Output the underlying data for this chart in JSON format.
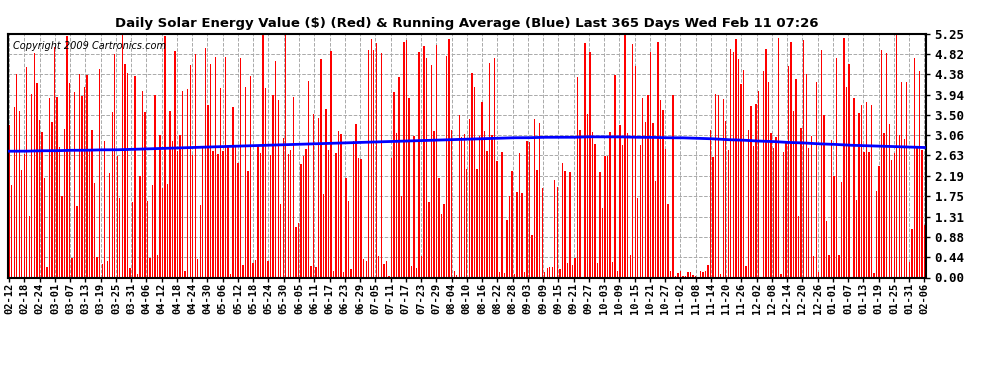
{
  "title": "Daily Solar Energy Value ($) (Red) & Running Average (Blue) Last 365 Days Wed Feb 11 07:26",
  "copyright": "Copyright 2009 Cartronics.com",
  "yticks": [
    0.0,
    0.44,
    0.88,
    1.31,
    1.75,
    2.19,
    2.63,
    3.06,
    3.5,
    3.94,
    4.38,
    4.82,
    5.25
  ],
  "ylim": [
    0.0,
    5.25
  ],
  "bar_color": "#ff0000",
  "avg_color": "#0000ff",
  "bg_color": "#ffffff",
  "grid_color": "#aaaaaa",
  "title_color": "#000000",
  "x_labels": [
    "02-12",
    "02-18",
    "02-24",
    "03-01",
    "03-07",
    "03-13",
    "03-19",
    "03-25",
    "03-31",
    "04-06",
    "04-12",
    "04-18",
    "04-24",
    "04-30",
    "05-06",
    "05-12",
    "05-18",
    "05-24",
    "05-30",
    "06-05",
    "06-11",
    "06-17",
    "06-23",
    "06-29",
    "07-05",
    "07-11",
    "07-17",
    "07-23",
    "07-29",
    "08-04",
    "08-10",
    "08-16",
    "08-22",
    "08-28",
    "09-03",
    "09-09",
    "09-15",
    "09-21",
    "09-27",
    "10-03",
    "10-09",
    "10-15",
    "10-21",
    "10-27",
    "11-02",
    "11-08",
    "11-14",
    "11-20",
    "11-26",
    "12-02",
    "12-08",
    "12-14",
    "12-20",
    "12-26",
    "01-01",
    "01-07",
    "01-13",
    "01-19",
    "01-25",
    "01-31",
    "02-06"
  ],
  "avg_values": [
    2.72,
    2.72,
    2.73,
    2.73,
    2.74,
    2.74,
    2.75,
    2.75,
    2.76,
    2.77,
    2.78,
    2.79,
    2.8,
    2.81,
    2.82,
    2.83,
    2.84,
    2.85,
    2.86,
    2.87,
    2.88,
    2.89,
    2.9,
    2.91,
    2.92,
    2.93,
    2.94,
    2.95,
    2.96,
    2.97,
    2.98,
    2.99,
    3.0,
    3.01,
    3.01,
    3.02,
    3.02,
    3.02,
    3.03,
    3.03,
    3.03,
    3.02,
    3.02,
    3.01,
    3.01,
    3.0,
    2.99,
    2.97,
    2.96,
    2.94,
    2.93,
    2.91,
    2.9,
    2.88,
    2.87,
    2.85,
    2.84,
    2.83,
    2.82,
    2.81,
    2.8
  ],
  "seed": 123,
  "n_days": 365
}
